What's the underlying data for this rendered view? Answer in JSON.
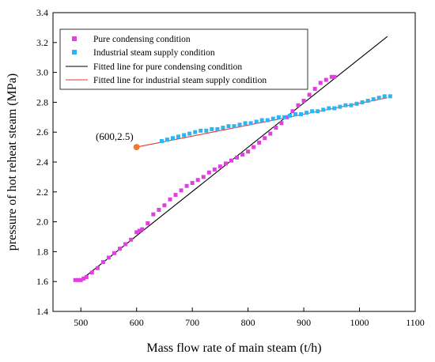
{
  "chart_data": {
    "type": "scatter",
    "xlabel": "Mass flow rate of main steam (t/h)",
    "ylabel": "pressure of  hot reheat steam (MPa)",
    "xlim": [
      450,
      1100
    ],
    "ylim": [
      1.4,
      3.4
    ],
    "xticks": [
      "500",
      "600",
      "700",
      "800",
      "900",
      "1000",
      "1100"
    ],
    "yticks": [
      "1.4",
      "1.6",
      "1.8",
      "2.0",
      "2.2",
      "2.4",
      "2.6",
      "2.8",
      "3.0",
      "3.2",
      "3.4"
    ],
    "legend_position": "top-left",
    "series": [
      {
        "name": "Pure condensing condition",
        "kind": "scatter",
        "color": "#e040e0",
        "x": [
          490,
          495,
          500,
          505,
          510,
          520,
          530,
          540,
          550,
          560,
          570,
          580,
          590,
          600,
          605,
          610,
          620,
          630,
          640,
          650,
          660,
          670,
          680,
          690,
          700,
          710,
          720,
          730,
          740,
          750,
          760,
          770,
          780,
          790,
          800,
          810,
          820,
          830,
          840,
          850,
          860,
          870,
          880,
          890,
          900,
          910,
          920,
          930,
          940,
          950,
          955
        ],
        "y": [
          1.61,
          1.61,
          1.61,
          1.62,
          1.63,
          1.66,
          1.69,
          1.73,
          1.76,
          1.79,
          1.82,
          1.85,
          1.88,
          1.93,
          1.94,
          1.95,
          1.99,
          2.05,
          2.08,
          2.11,
          2.15,
          2.18,
          2.21,
          2.24,
          2.26,
          2.28,
          2.3,
          2.33,
          2.35,
          2.37,
          2.39,
          2.41,
          2.43,
          2.45,
          2.47,
          2.5,
          2.53,
          2.56,
          2.59,
          2.63,
          2.66,
          2.7,
          2.74,
          2.78,
          2.81,
          2.85,
          2.89,
          2.93,
          2.95,
          2.97,
          2.97
        ]
      },
      {
        "name": "Industrial steam supply condition",
        "kind": "scatter",
        "color": "#29b6f6",
        "x": [
          645,
          655,
          665,
          675,
          685,
          695,
          705,
          715,
          725,
          735,
          745,
          755,
          765,
          775,
          785,
          795,
          805,
          815,
          825,
          835,
          845,
          855,
          865,
          875,
          885,
          895,
          905,
          915,
          925,
          935,
          945,
          955,
          965,
          975,
          985,
          995,
          1005,
          1015,
          1025,
          1035,
          1045,
          1055
        ],
        "y": [
          2.54,
          2.55,
          2.56,
          2.57,
          2.58,
          2.59,
          2.6,
          2.61,
          2.61,
          2.62,
          2.62,
          2.63,
          2.64,
          2.64,
          2.65,
          2.66,
          2.66,
          2.67,
          2.68,
          2.68,
          2.69,
          2.7,
          2.7,
          2.71,
          2.72,
          2.72,
          2.73,
          2.74,
          2.74,
          2.75,
          2.76,
          2.76,
          2.77,
          2.78,
          2.78,
          2.79,
          2.8,
          2.81,
          2.82,
          2.83,
          2.84,
          2.84
        ]
      },
      {
        "name": "Fitted line for pure condensing condition",
        "kind": "line",
        "color": "#000000",
        "x": [
          500,
          1050
        ],
        "y": [
          1.61,
          3.24
        ]
      },
      {
        "name": "Fitted line for industrial steam supply condition",
        "kind": "line",
        "color": "#e53935",
        "x": [
          600,
          1050
        ],
        "y": [
          2.5,
          2.83
        ]
      }
    ],
    "annotation": {
      "text": "(600,2.5)",
      "x": 600,
      "y": 2.5,
      "color": "#ef7b2a"
    }
  }
}
